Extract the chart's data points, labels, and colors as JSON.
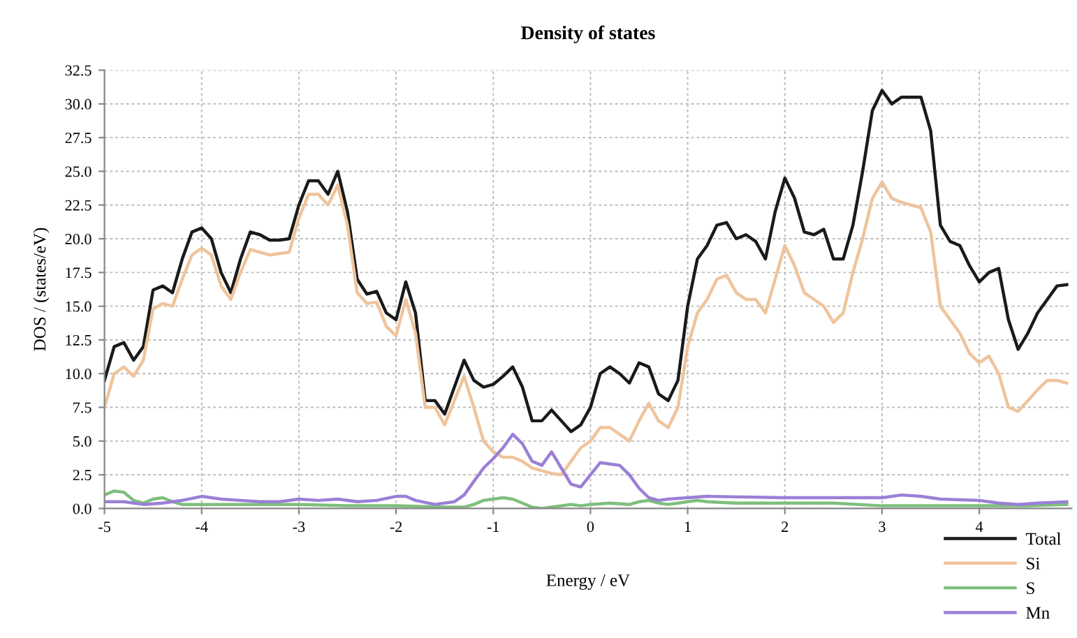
{
  "chart_data": {
    "type": "line",
    "title": "Density of states",
    "xlabel": "Energy / eV",
    "ylabel": "DOS / (states/eV)",
    "xlim": [
      -5,
      4.95
    ],
    "xticks": [
      -5,
      -4,
      -3,
      -2,
      -1,
      0,
      1,
      2,
      3,
      4
    ],
    "ylim": [
      0,
      32.5
    ],
    "yticks": [
      {
        "value": 0,
        "label": "0.0"
      },
      {
        "value": 2.5,
        "label": "2.5"
      },
      {
        "value": 5,
        "label": "5.0"
      },
      {
        "value": 7.5,
        "label": "7.5"
      },
      {
        "value": 10,
        "label": "10.0"
      },
      {
        "value": 12.5,
        "label": "12.5"
      },
      {
        "value": 15,
        "label": "15.0"
      },
      {
        "value": 17.5,
        "label": "17.5"
      },
      {
        "value": 20,
        "label": "20.0"
      },
      {
        "value": 22.5,
        "label": "22.5"
      },
      {
        "value": 25,
        "label": "25.0"
      },
      {
        "value": 27.5,
        "label": "27.5"
      },
      {
        "value": 30,
        "label": "30.0"
      },
      {
        "value": 32.5,
        "label": "32.5"
      }
    ],
    "grid": true,
    "legend": "bottom right",
    "line_style": "solid",
    "marker": "none",
    "x": [
      -5.0,
      -4.9,
      -4.8,
      -4.7,
      -4.6,
      -4.5,
      -4.4,
      -4.3,
      -4.2,
      -4.1,
      -4.0,
      -3.9,
      -3.8,
      -3.7,
      -3.6,
      -3.5,
      -3.4,
      -3.3,
      -3.2,
      -3.1,
      -3.0,
      -2.9,
      -2.8,
      -2.7,
      -2.6,
      -2.5,
      -2.4,
      -2.3,
      -2.2,
      -2.1,
      -2.0,
      -1.9,
      -1.8,
      -1.7,
      -1.6,
      -1.5,
      -1.4,
      -1.3,
      -1.2,
      -1.1,
      -1.0,
      -0.9,
      -0.8,
      -0.7,
      -0.6,
      -0.5,
      -0.4,
      -0.3,
      -0.2,
      -0.1,
      0.0,
      0.1,
      0.2,
      0.3,
      0.4,
      0.5,
      0.6,
      0.7,
      0.8,
      0.9,
      1.0,
      1.1,
      1.2,
      1.3,
      1.4,
      1.5,
      1.6,
      1.7,
      1.8,
      1.9,
      2.0,
      2.1,
      2.2,
      2.3,
      2.4,
      2.5,
      2.6,
      2.7,
      2.8,
      2.9,
      3.0,
      3.1,
      3.2,
      3.3,
      3.4,
      3.5,
      3.6,
      3.7,
      3.8,
      3.9,
      4.0,
      4.1,
      4.2,
      4.3,
      4.4,
      4.5,
      4.6,
      4.7,
      4.8,
      4.9
    ],
    "series": [
      {
        "name": "Total",
        "color": "#1a1a1a",
        "values": [
          9.5,
          12.0,
          12.3,
          11.0,
          12.0,
          16.2,
          16.5,
          16.0,
          18.5,
          20.5,
          20.8,
          20.0,
          17.5,
          16.0,
          18.5,
          20.5,
          20.3,
          19.9,
          19.9,
          20.0,
          22.5,
          24.3,
          24.3,
          23.3,
          25.0,
          22.0,
          17.0,
          15.9,
          16.1,
          14.5,
          14.0,
          16.8,
          14.5,
          8.0,
          8.0,
          7.0,
          9.0,
          11.0,
          9.5,
          9.0,
          9.2,
          9.8,
          10.5,
          9.0,
          6.5,
          6.5,
          7.3,
          6.5,
          5.7,
          6.2,
          7.5,
          10.0,
          10.5,
          10.0,
          9.3,
          10.8,
          10.5,
          8.5,
          8.0,
          9.5,
          15.0,
          18.5,
          19.5,
          21.0,
          21.2,
          20.0,
          20.3,
          19.8,
          18.5,
          22.0,
          24.5,
          23.0,
          20.5,
          20.3,
          20.7,
          18.5,
          18.5,
          21.0,
          25.0,
          29.5,
          31.0,
          30.0,
          30.5,
          30.5,
          30.5,
          28.0,
          21.0,
          19.8,
          19.5,
          18.0,
          16.8,
          17.5,
          17.8,
          14.0,
          11.8,
          13.0,
          14.5,
          15.5,
          16.5,
          16.6
        ]
      },
      {
        "name": "Si",
        "color": "#efc49c",
        "values": [
          7.5,
          10.0,
          10.5,
          9.8,
          11.0,
          14.8,
          15.2,
          15.0,
          17.0,
          18.8,
          19.3,
          18.8,
          16.5,
          15.5,
          17.5,
          19.2,
          19.0,
          18.8,
          18.9,
          19.0,
          21.5,
          23.3,
          23.3,
          22.5,
          24.0,
          21.0,
          16.0,
          15.2,
          15.3,
          13.5,
          12.8,
          15.5,
          13.0,
          7.5,
          7.5,
          6.2,
          8.0,
          9.8,
          7.5,
          5.0,
          4.2,
          3.8,
          3.8,
          3.5,
          3.0,
          2.8,
          2.6,
          2.5,
          3.5,
          4.5,
          5.0,
          6.0,
          6.0,
          5.5,
          5.0,
          6.5,
          7.8,
          6.5,
          6.0,
          7.5,
          12.0,
          14.5,
          15.5,
          17.0,
          17.3,
          16.0,
          15.5,
          15.5,
          14.5,
          17.0,
          19.5,
          18.0,
          16.0,
          15.5,
          15.0,
          13.8,
          14.5,
          17.5,
          20.0,
          23.0,
          24.2,
          23.0,
          22.7,
          22.5,
          22.3,
          20.5,
          15.0,
          14.0,
          13.0,
          11.5,
          10.8,
          11.3,
          10.0,
          7.5,
          7.2,
          8.0,
          8.8,
          9.5,
          9.5,
          9.3
        ]
      },
      {
        "name": "S",
        "color": "#7dbf7d",
        "x": [
          -5.0,
          -4.9,
          -4.8,
          -4.7,
          -4.6,
          -4.5,
          -4.4,
          -4.3,
          -4.2,
          -3.5,
          -3.0,
          -2.5,
          -2.0,
          -1.5,
          -1.3,
          -1.2,
          -1.1,
          -1.0,
          -0.9,
          -0.8,
          -0.7,
          -0.6,
          -0.5,
          -0.4,
          -0.3,
          -0.2,
          -0.1,
          0.0,
          0.2,
          0.4,
          0.5,
          0.6,
          0.7,
          0.8,
          0.9,
          1.0,
          1.1,
          1.2,
          1.5,
          2.0,
          2.5,
          3.0,
          3.5,
          4.0,
          4.5,
          4.9
        ],
        "values": [
          1.0,
          1.3,
          1.2,
          0.6,
          0.4,
          0.7,
          0.8,
          0.5,
          0.3,
          0.3,
          0.3,
          0.2,
          0.2,
          0.1,
          0.1,
          0.3,
          0.6,
          0.7,
          0.8,
          0.7,
          0.4,
          0.1,
          0.0,
          0.1,
          0.2,
          0.3,
          0.2,
          0.3,
          0.4,
          0.3,
          0.5,
          0.6,
          0.4,
          0.3,
          0.4,
          0.5,
          0.6,
          0.5,
          0.4,
          0.4,
          0.4,
          0.2,
          0.2,
          0.2,
          0.2,
          0.3
        ]
      },
      {
        "name": "Mn",
        "color": "#9b7fd6",
        "x": [
          -5.0,
          -4.8,
          -4.6,
          -4.4,
          -4.2,
          -4.0,
          -3.8,
          -3.6,
          -3.4,
          -3.2,
          -3.0,
          -2.8,
          -2.6,
          -2.4,
          -2.2,
          -2.0,
          -1.9,
          -1.8,
          -1.6,
          -1.4,
          -1.3,
          -1.2,
          -1.1,
          -1.0,
          -0.9,
          -0.8,
          -0.7,
          -0.6,
          -0.5,
          -0.4,
          -0.3,
          -0.2,
          -0.1,
          0.0,
          0.1,
          0.2,
          0.3,
          0.4,
          0.5,
          0.6,
          0.7,
          0.8,
          1.0,
          1.2,
          2.0,
          3.0,
          3.2,
          3.4,
          3.6,
          4.0,
          4.2,
          4.4,
          4.6,
          4.9
        ],
        "values": [
          0.5,
          0.5,
          0.3,
          0.4,
          0.6,
          0.9,
          0.7,
          0.6,
          0.5,
          0.5,
          0.7,
          0.6,
          0.7,
          0.5,
          0.6,
          0.9,
          0.9,
          0.6,
          0.3,
          0.5,
          1.0,
          2.0,
          3.0,
          3.7,
          4.5,
          5.5,
          4.8,
          3.5,
          3.2,
          4.2,
          3.0,
          1.8,
          1.6,
          2.5,
          3.4,
          3.3,
          3.2,
          2.5,
          1.5,
          0.8,
          0.6,
          0.7,
          0.8,
          0.9,
          0.8,
          0.8,
          1.0,
          0.9,
          0.7,
          0.6,
          0.4,
          0.3,
          0.4,
          0.5
        ]
      }
    ]
  }
}
